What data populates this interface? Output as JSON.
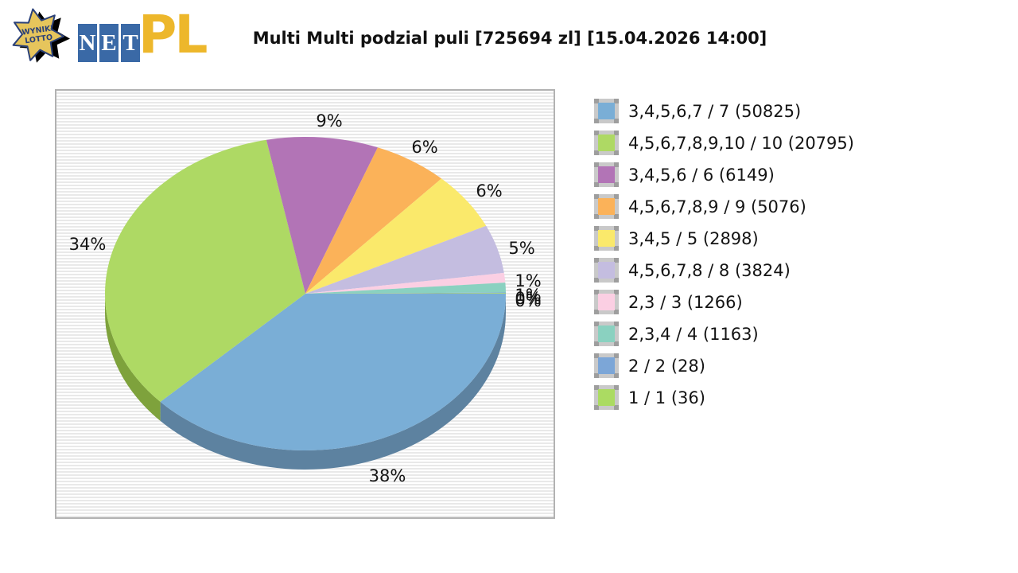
{
  "header": {
    "logo": {
      "star_text_line1": "WYNIKI",
      "star_text_line2": "LOTTO",
      "tiles": [
        "N",
        "E",
        "T"
      ],
      "suffix": "PL",
      "star_color": "#E6C55C",
      "star_outline_color": "#2A4078",
      "tile_color": "#3A69A6",
      "suffix_color": "#EDB72B"
    },
    "title": "Multi Multi podzial puli [725694 zl] [15.04.2026 14:00]"
  },
  "chart_data": {
    "type": "pie",
    "is_3d": true,
    "title": "Multi Multi podzial puli [725694 zl] [15.04.2026 14:00]",
    "pool_zl": 725694,
    "draw_datetime": "15.04.2026 14:00",
    "start_angle_deg": 0,
    "direction": "clockwise",
    "legend_position": "right",
    "background_stripes": [
      "#ffffff",
      "#e9e9e9"
    ],
    "slices": [
      {
        "label": "3,4,5,6,7 / 7",
        "winners": 50825,
        "percent": 38,
        "percent_label": "38%",
        "color": "#7AAED6",
        "side_color": "#5D82A0"
      },
      {
        "label": "4,5,6,7,8,9,10 / 10",
        "winners": 20795,
        "percent": 34,
        "percent_label": "34%",
        "color": "#AED964",
        "side_color": "#7EA23C"
      },
      {
        "label": "3,4,5,6 / 6",
        "winners": 6149,
        "percent": 9,
        "percent_label": "9%",
        "color": "#B274B6",
        "side_color": "#855289"
      },
      {
        "label": "4,5,6,7,8,9 / 9",
        "winners": 5076,
        "percent": 6,
        "percent_label": "6%",
        "color": "#FBB259",
        "side_color": "#BC8542"
      },
      {
        "label": "3,4,5 / 5",
        "winners": 2898,
        "percent": 6,
        "percent_label": "6%",
        "color": "#FAE96B",
        "side_color": "#BBAE50"
      },
      {
        "label": "4,5,6,7,8 / 8",
        "winners": 3824,
        "percent": 5,
        "percent_label": "5%",
        "color": "#C4BDE0",
        "side_color": "#938DA8"
      },
      {
        "label": "2,3 / 3",
        "winners": 1266,
        "percent": 1,
        "percent_label": "1%",
        "color": "#FBCFE3",
        "side_color": "#BC9BAA"
      },
      {
        "label": "2,3,4 / 4",
        "winners": 1163,
        "percent": 1,
        "percent_label": "1%",
        "color": "#8AD1C0",
        "side_color": "#679C90"
      },
      {
        "label": "2 / 2",
        "winners": 28,
        "percent": 0,
        "percent_label": "0%",
        "color": "#7CA6D7",
        "side_color": "#5D7CA1"
      },
      {
        "label": "1 / 1",
        "winners": 36,
        "percent": 0,
        "percent_label": "0%",
        "color": "#ABDB62",
        "side_color": "#80A449"
      }
    ]
  }
}
